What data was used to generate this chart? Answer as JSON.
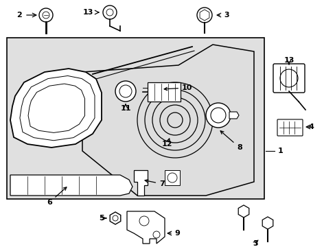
{
  "background_color": "#ffffff",
  "diagram_bg": "#e0e0e0",
  "line_color": "#000000",
  "text_color": "#000000",
  "fig_width": 4.89,
  "fig_height": 3.6,
  "dpi": 100
}
